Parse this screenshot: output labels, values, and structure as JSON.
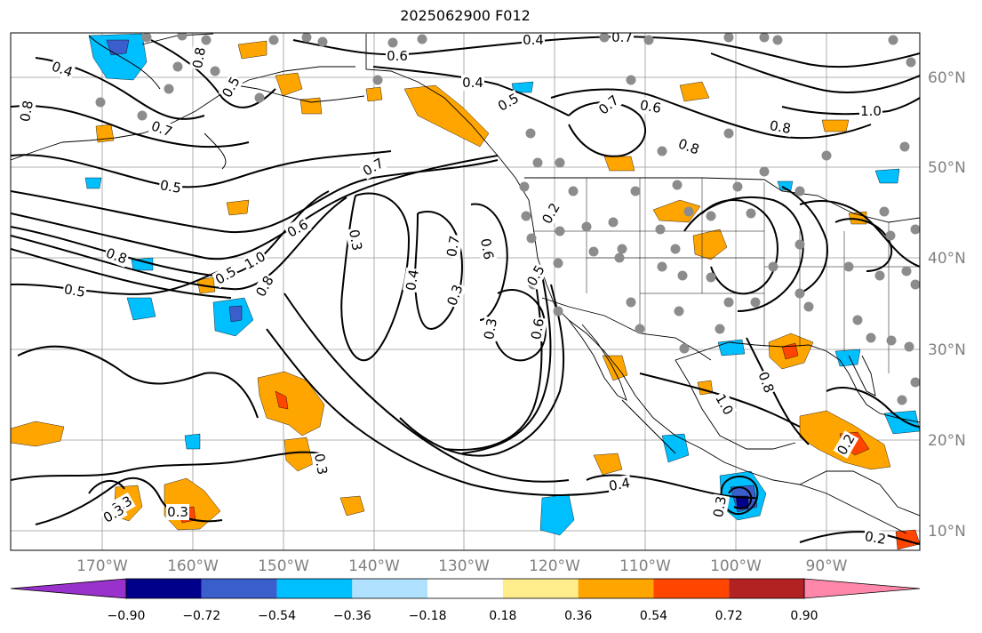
{
  "title": "2025062900 F012",
  "map": {
    "lon_labels": [
      "170°W",
      "160°W",
      "150°W",
      "140°W",
      "130°W",
      "120°W",
      "110°W",
      "100°W",
      "90°W"
    ],
    "lat_labels": [
      "60°N",
      "50°N",
      "40°N",
      "30°N",
      "20°N",
      "10°N"
    ],
    "contour_labels": [
      "0.4",
      "0.6",
      "0.4",
      "0.7",
      "0.4",
      "0.5",
      "0.8",
      "0.7",
      "0.5",
      "0.8",
      "0.7",
      "0.6",
      "0.8",
      "0.8",
      "1.0",
      "0.5",
      "0.7",
      "0.6",
      "0.3",
      "0.7",
      "0.6",
      "0.8",
      "0.5",
      "1.0",
      "0.8",
      "0.4",
      "0.5",
      "0.3",
      "0.3",
      "0.6",
      "0.5",
      "0.8",
      "1.0",
      "0.3",
      "0.4",
      "0.3",
      "0.3",
      "0.3",
      "0.3",
      "0.2",
      "0.2",
      "0.2"
    ]
  },
  "colorbar": {
    "ticks": [
      "−0.90",
      "−0.72",
      "−0.54",
      "−0.36",
      "−0.18",
      "0.18",
      "0.36",
      "0.54",
      "0.72",
      "0.90"
    ],
    "colors": [
      "#9932cc",
      "#00008b",
      "#3a5fcd",
      "#00bfff",
      "#b0e2ff",
      "#ffffff",
      "#ffec8b",
      "#ffa500",
      "#ff4500",
      "#b22222",
      "#ff88aa"
    ]
  }
}
